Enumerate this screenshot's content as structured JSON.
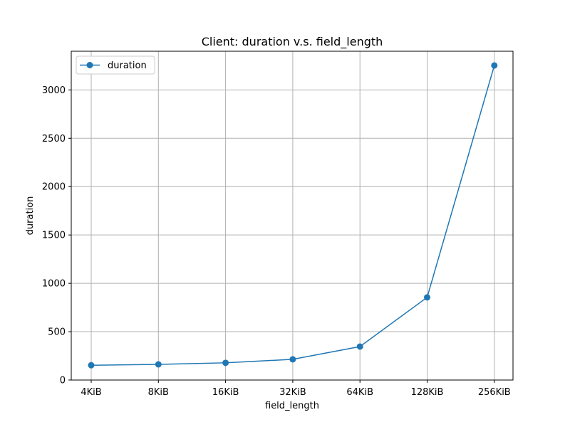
{
  "chart_data": {
    "type": "line",
    "title": "Client: duration v.s. field_length",
    "xlabel": "field_length",
    "ylabel": "duration",
    "categories": [
      "4KiB",
      "8KiB",
      "16KiB",
      "32KiB",
      "64KiB",
      "128KiB",
      "256KiB"
    ],
    "series": [
      {
        "name": "duration",
        "values": [
          153,
          162,
          178,
          214,
          346,
          855,
          3253
        ],
        "color": "#1f77b4",
        "marker": "circle"
      }
    ],
    "ylim": [
      0,
      3400
    ],
    "yticks": [
      0,
      500,
      1000,
      1500,
      2000,
      2500,
      3000
    ],
    "grid": true,
    "legend": "top-left"
  }
}
